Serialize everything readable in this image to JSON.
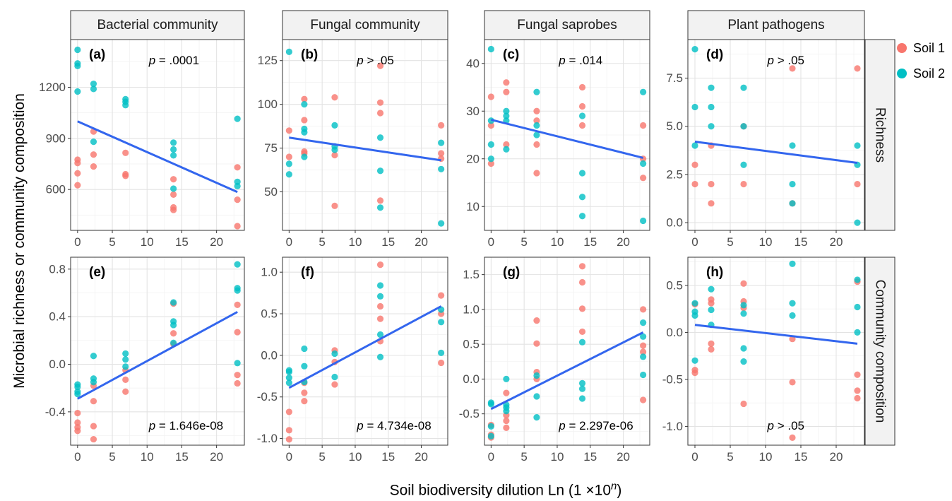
{
  "figure": {
    "y_title": "Microbial richness or community composition",
    "x_title_main": "Soil biodiversity dilution Ln (1 ×10",
    "x_title_sup": "n",
    "x_title_end": ")"
  },
  "legend": [
    {
      "label": "Soil 1",
      "color": "#F8766D"
    },
    {
      "label": "Soil 2",
      "color": "#00BFC4"
    }
  ],
  "colors": {
    "fit_line": "#3366EE",
    "soil1": "#F8766D",
    "soil2": "#00BFC4"
  },
  "column_strips": [
    "Bacterial community",
    "Fungal community",
    "Fungal saprobes",
    "Plant pathogens"
  ],
  "row_strips": [
    "Richness",
    "Community composition"
  ],
  "chart_data": [
    {
      "type": "scatter",
      "panel_label": "(a)",
      "column": "Bacterial community",
      "row": "Richness",
      "p_text": ".0001",
      "p_position": "top",
      "xlim": [
        -1,
        24
      ],
      "x_ticks": [
        0,
        5,
        10,
        15,
        20
      ],
      "ylim": [
        360,
        1480
      ],
      "y_ticks": [
        600,
        900,
        1200
      ],
      "series": [
        {
          "name": "Soil 1",
          "x": [
            0,
            0,
            0,
            0,
            2.3,
            2.3,
            2.3,
            6.9,
            6.9,
            6.9,
            13.8,
            13.8,
            13.8,
            13.8,
            23.0,
            23.0,
            23.0
          ],
          "y": [
            775,
            755,
            695,
            625,
            940,
            805,
            735,
            815,
            690,
            680,
            660,
            570,
            495,
            480,
            730,
            540,
            385
          ]
        },
        {
          "name": "Soil 2",
          "x": [
            0,
            0,
            0,
            0,
            2.3,
            2.3,
            2.3,
            6.9,
            6.9,
            6.9,
            13.8,
            13.8,
            13.8,
            13.8,
            23.0,
            23.0,
            23.0
          ],
          "y": [
            1420,
            1340,
            1325,
            1175,
            1220,
            1190,
            880,
            1130,
            1115,
            1095,
            875,
            835,
            800,
            605,
            1015,
            645,
            620
          ]
        }
      ],
      "fit": {
        "x": [
          0,
          23.0
        ],
        "y": [
          1000,
          585
        ]
      }
    },
    {
      "type": "scatter",
      "panel_label": "(b)",
      "column": "Fungal community",
      "row": "Richness",
      "p_text": "> .05",
      "p_position": "top",
      "xlim": [
        -1,
        24
      ],
      "x_ticks": [
        0,
        5,
        10,
        15,
        20
      ],
      "ylim": [
        28,
        137
      ],
      "y_ticks": [
        50,
        75,
        100,
        125
      ],
      "series": [
        {
          "name": "Soil 1",
          "x": [
            0,
            0,
            2.3,
            2.3,
            2.3,
            2.3,
            6.9,
            6.9,
            6.9,
            13.8,
            13.8,
            13.8,
            13.8,
            23.0,
            23.0,
            23.0
          ],
          "y": [
            85,
            70,
            103,
            91,
            73,
            72,
            104,
            71,
            42,
            122,
            101,
            95,
            45,
            88,
            72,
            69
          ]
        },
        {
          "name": "Soil 2",
          "x": [
            0,
            0,
            0,
            2.3,
            2.3,
            2.3,
            2.3,
            6.9,
            6.9,
            6.9,
            13.8,
            13.8,
            13.8,
            23.0,
            23.0,
            23.0
          ],
          "y": [
            130,
            66,
            60,
            100,
            86,
            84,
            70,
            88,
            76,
            74,
            81,
            62,
            41,
            78,
            63,
            32
          ]
        }
      ],
      "fit": {
        "x": [
          0,
          23.0
        ],
        "y": [
          81,
          68
        ]
      }
    },
    {
      "type": "scatter",
      "panel_label": "(c)",
      "column": "Fungal saprobes",
      "row": "Richness",
      "p_text": ".014",
      "p_position": "top",
      "xlim": [
        -1,
        24
      ],
      "x_ticks": [
        0,
        5,
        10,
        15,
        20
      ],
      "ylim": [
        5,
        45
      ],
      "y_ticks": [
        10,
        20,
        30,
        40
      ],
      "series": [
        {
          "name": "Soil 1",
          "x": [
            0,
            0,
            0,
            2.3,
            2.3,
            2.3,
            6.9,
            6.9,
            6.9,
            6.9,
            13.8,
            13.8,
            13.8,
            23.0,
            23.0,
            23.0
          ],
          "y": [
            33,
            27,
            19,
            36,
            34,
            23,
            30,
            28,
            23,
            17,
            35,
            31,
            27,
            27,
            20,
            16
          ]
        },
        {
          "name": "Soil 2",
          "x": [
            0,
            0,
            0,
            0,
            2.3,
            2.3,
            2.3,
            2.3,
            6.9,
            6.9,
            6.9,
            13.8,
            13.8,
            13.8,
            13.8,
            23.0,
            23.0,
            23.0
          ],
          "y": [
            43,
            28,
            23,
            20,
            30,
            29,
            28,
            22,
            34,
            27,
            25,
            29,
            17,
            12,
            8,
            34,
            19,
            7
          ]
        }
      ],
      "fit": {
        "x": [
          0,
          23.0
        ],
        "y": [
          28.2,
          20.2
        ]
      }
    },
    {
      "type": "scatter",
      "panel_label": "(d)",
      "column": "Plant pathogens",
      "row": "Richness",
      "p_text": "> .05",
      "p_position": "top",
      "xlim": [
        -1,
        24
      ],
      "x_ticks": [
        0,
        5,
        10,
        15,
        20
      ],
      "ylim": [
        -0.4,
        9.5
      ],
      "y_ticks": [
        0.0,
        2.5,
        5.0,
        7.5
      ],
      "series": [
        {
          "name": "Soil 1",
          "x": [
            0,
            0,
            2.3,
            2.3,
            2.3,
            6.9,
            6.9,
            13.8,
            13.8,
            23.0,
            23.0
          ],
          "y": [
            3,
            2,
            4,
            2,
            1,
            5,
            2,
            8,
            1,
            8,
            2
          ]
        },
        {
          "name": "Soil 2",
          "x": [
            0,
            0,
            0,
            2.3,
            2.3,
            2.3,
            6.9,
            6.9,
            6.9,
            13.8,
            13.8,
            13.8,
            23.0,
            23.0,
            23.0
          ],
          "y": [
            9,
            6,
            4,
            7,
            6,
            5,
            7,
            5,
            3,
            4,
            2,
            1,
            4,
            3,
            0
          ]
        }
      ],
      "fit": {
        "x": [
          0,
          23.0
        ],
        "y": [
          4.2,
          3.1
        ]
      }
    },
    {
      "type": "scatter",
      "panel_label": "(e)",
      "column": "Bacterial community",
      "row": "Community composition",
      "p_text": "1.646e-08",
      "p_position": "bottom",
      "xlim": [
        -1,
        24
      ],
      "x_ticks": [
        0,
        5,
        10,
        15,
        20
      ],
      "ylim": [
        -0.68,
        0.9
      ],
      "y_ticks": [
        -0.4,
        0.0,
        0.4,
        0.8
      ],
      "series": [
        {
          "name": "Soil 1",
          "x": [
            0,
            0,
            0,
            0,
            2.3,
            2.3,
            2.3,
            2.3,
            6.9,
            6.9,
            6.9,
            13.8,
            13.8,
            13.8,
            23.0,
            23.0,
            23.0,
            23.0
          ],
          "y": [
            -0.41,
            -0.49,
            -0.53,
            -0.56,
            -0.18,
            -0.31,
            -0.52,
            -0.63,
            -0.05,
            -0.13,
            -0.23,
            0.51,
            0.26,
            0.17,
            0.5,
            0.27,
            -0.09,
            -0.16
          ]
        },
        {
          "name": "Soil 2",
          "x": [
            0,
            0,
            0,
            0,
            2.3,
            2.3,
            2.3,
            6.9,
            6.9,
            6.9,
            13.8,
            13.8,
            13.8,
            13.8,
            23.0,
            23.0,
            23.0,
            23.0
          ],
          "y": [
            -0.17,
            -0.19,
            -0.23,
            -0.25,
            0.07,
            -0.12,
            -0.15,
            0.09,
            0.04,
            -0.02,
            0.52,
            0.36,
            0.33,
            0.18,
            0.84,
            0.64,
            0.62,
            0.01
          ]
        }
      ],
      "fit": {
        "x": [
          0,
          23.0
        ],
        "y": [
          -0.29,
          0.44
        ]
      }
    },
    {
      "type": "scatter",
      "panel_label": "(f)",
      "column": "Fungal community",
      "row": "Community composition",
      "p_text": "4.734e-08",
      "p_position": "bottom",
      "xlim": [
        -1,
        24
      ],
      "x_ticks": [
        0,
        5,
        10,
        15,
        20
      ],
      "ylim": [
        -1.08,
        1.18
      ],
      "y_ticks": [
        -1.0,
        -0.5,
        0.0,
        0.5,
        1.0
      ],
      "series": [
        {
          "name": "Soil 1",
          "x": [
            0,
            0,
            0,
            2.3,
            2.3,
            2.3,
            6.9,
            6.9,
            6.9,
            13.8,
            13.8,
            13.8,
            13.8,
            23.0,
            23.0,
            23.0
          ],
          "y": [
            -0.68,
            -0.9,
            -1.01,
            -0.33,
            -0.45,
            -0.55,
            0.06,
            -0.08,
            -0.35,
            1.09,
            0.59,
            0.44,
            0.17,
            0.72,
            0.5,
            -0.09
          ]
        },
        {
          "name": "Soil 2",
          "x": [
            0,
            0,
            0,
            0,
            2.3,
            2.3,
            2.3,
            6.9,
            6.9,
            13.8,
            13.8,
            13.8,
            13.8,
            23.0,
            23.0,
            23.0
          ],
          "y": [
            -0.18,
            -0.2,
            -0.27,
            -0.33,
            0.08,
            -0.13,
            -0.32,
            0.02,
            -0.26,
            0.84,
            0.71,
            0.25,
            -0.02,
            0.55,
            0.4,
            0.03
          ]
        }
      ],
      "fit": {
        "x": [
          0,
          23.0
        ],
        "y": [
          -0.39,
          0.59
        ]
      }
    },
    {
      "type": "scatter",
      "panel_label": "(g)",
      "column": "Fungal saprobes",
      "row": "Community composition",
      "p_text": "2.297e-06",
      "p_position": "bottom",
      "xlim": [
        -1,
        24
      ],
      "x_ticks": [
        0,
        5,
        10,
        15,
        20
      ],
      "ylim": [
        -0.95,
        1.75
      ],
      "y_ticks": [
        -0.5,
        0.0,
        0.5,
        1.0,
        1.5
      ],
      "series": [
        {
          "name": "Soil 1",
          "x": [
            0,
            0,
            0,
            2.3,
            2.3,
            2.3,
            2.3,
            6.9,
            6.9,
            6.9,
            6.9,
            13.8,
            13.8,
            13.8,
            13.8,
            23.0,
            23.0,
            23.0,
            23.0
          ],
          "y": [
            -0.66,
            -0.8,
            -0.84,
            -0.2,
            -0.52,
            -0.6,
            -0.7,
            0.84,
            0.51,
            0.1,
            0.0,
            1.62,
            1.39,
            1.01,
            0.68,
            1.0,
            0.48,
            0.39,
            -0.3
          ]
        },
        {
          "name": "Soil 2",
          "x": [
            0,
            0,
            0,
            0,
            2.3,
            2.3,
            2.3,
            2.3,
            6.9,
            6.9,
            6.9,
            13.8,
            13.8,
            13.8,
            13.8,
            23.0,
            23.0,
            23.0,
            23.0
          ],
          "y": [
            -0.34,
            -0.36,
            -0.68,
            -0.82,
            0.0,
            -0.37,
            -0.41,
            -0.46,
            0.05,
            -0.25,
            -0.55,
            0.53,
            -0.06,
            -0.14,
            -0.28,
            0.81,
            0.61,
            0.32,
            0.06
          ]
        }
      ],
      "fit": {
        "x": [
          0,
          23.0
        ],
        "y": [
          -0.43,
          0.67
        ]
      }
    },
    {
      "type": "scatter",
      "panel_label": "(h)",
      "column": "Plant pathogens",
      "row": "Community composition",
      "p_text": "> .05",
      "p_position": "bottom",
      "xlim": [
        -1,
        24
      ],
      "x_ticks": [
        0,
        5,
        10,
        15,
        20
      ],
      "ylim": [
        -1.2,
        0.8
      ],
      "y_ticks": [
        -1.0,
        -0.5,
        0.0,
        0.5
      ],
      "series": [
        {
          "name": "Soil 1",
          "x": [
            0,
            0,
            0,
            2.3,
            2.3,
            2.3,
            2.3,
            6.9,
            6.9,
            6.9,
            6.9,
            13.8,
            13.8,
            13.8,
            23.0,
            23.0,
            23.0,
            23.0
          ],
          "y": [
            0.3,
            -0.4,
            -0.43,
            0.35,
            0.31,
            -0.12,
            -0.18,
            0.52,
            0.33,
            0.26,
            -0.76,
            -0.07,
            -0.53,
            -1.12,
            0.54,
            -0.45,
            -0.62,
            -0.7
          ]
        },
        {
          "name": "Soil 2",
          "x": [
            0,
            0,
            0,
            0,
            2.3,
            2.3,
            2.3,
            6.9,
            6.9,
            6.9,
            6.9,
            13.8,
            13.8,
            13.8,
            23.0,
            23.0,
            23.0
          ],
          "y": [
            0.31,
            0.22,
            0.18,
            -0.3,
            0.46,
            0.24,
            0.08,
            0.29,
            0.2,
            -0.17,
            -0.31,
            0.73,
            0.31,
            0.18,
            0.56,
            0.27,
            0.0
          ]
        }
      ],
      "fit": {
        "x": [
          0,
          23.0
        ],
        "y": [
          0.08,
          -0.12
        ]
      }
    }
  ]
}
